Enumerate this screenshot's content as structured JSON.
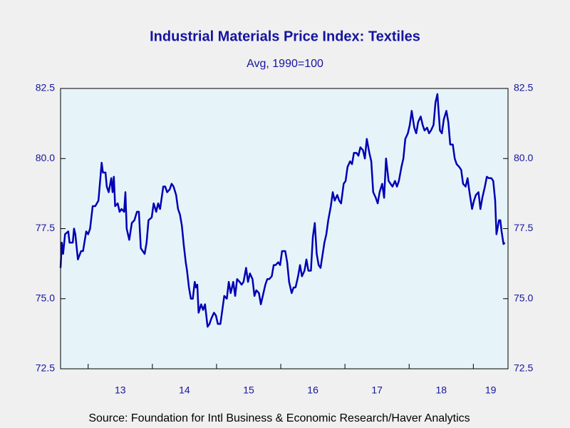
{
  "chart_data": {
    "type": "line",
    "title": "Industrial Materials Price Index: Textiles",
    "subtitle": "Avg, 1990=100",
    "source": "Source:  Foundation for Intl Business & Economic Research/Haver Analytics",
    "x": [
      12.57,
      12.59,
      12.61,
      12.64,
      12.69,
      12.71,
      12.76,
      12.78,
      12.8,
      12.84,
      12.89,
      12.92,
      12.97,
      13.0,
      13.03,
      13.07,
      13.11,
      13.16,
      13.19,
      13.21,
      13.23,
      13.27,
      13.29,
      13.32,
      13.36,
      13.38,
      13.4,
      13.42,
      13.46,
      13.49,
      13.52,
      13.56,
      13.58,
      13.6,
      13.64,
      13.68,
      13.72,
      13.76,
      13.79,
      13.82,
      13.88,
      13.91,
      13.94,
      13.99,
      14.02,
      14.06,
      14.09,
      14.12,
      14.17,
      14.2,
      14.23,
      14.27,
      14.3,
      14.33,
      14.37,
      14.4,
      14.43,
      14.46,
      14.49,
      14.52,
      14.54,
      14.57,
      14.6,
      14.63,
      14.66,
      14.68,
      14.7,
      14.72,
      14.76,
      14.79,
      14.82,
      14.86,
      14.89,
      14.92,
      14.96,
      14.99,
      15.02,
      15.06,
      15.09,
      15.12,
      15.16,
      15.19,
      15.22,
      15.26,
      15.29,
      15.32,
      15.36,
      15.39,
      15.42,
      15.46,
      15.49,
      15.52,
      15.56,
      15.59,
      15.62,
      15.66,
      15.69,
      15.72,
      15.76,
      15.79,
      15.82,
      15.86,
      15.89,
      15.92,
      15.96,
      15.99,
      16.02,
      16.07,
      16.1,
      16.13,
      16.17,
      16.2,
      16.23,
      16.27,
      16.3,
      16.33,
      16.37,
      16.4,
      16.43,
      16.47,
      16.5,
      16.53,
      16.56,
      16.59,
      16.62,
      16.64,
      16.68,
      16.71,
      16.74,
      16.78,
      16.81,
      16.84,
      16.88,
      16.91,
      16.94,
      16.98,
      17.01,
      17.04,
      17.08,
      17.11,
      17.14,
      17.18,
      17.21,
      17.24,
      17.28,
      17.31,
      17.34,
      17.38,
      17.41,
      17.44,
      17.48,
      17.51,
      17.54,
      17.58,
      17.61,
      17.64,
      17.68,
      17.71,
      17.74,
      17.78,
      17.81,
      17.84,
      17.88,
      17.91,
      17.94,
      17.98,
      18.01,
      18.04,
      18.08,
      18.11,
      18.14,
      18.18,
      18.21,
      18.24,
      18.28,
      18.31,
      18.34,
      18.38,
      18.41,
      18.44,
      18.48,
      18.51,
      18.54,
      18.58,
      18.61,
      18.64,
      18.68,
      18.71,
      18.74,
      18.78,
      18.81,
      18.84,
      18.88,
      18.91,
      18.94,
      18.98,
      19.01,
      19.04,
      19.08,
      19.11,
      19.14,
      19.18,
      19.21,
      19.24,
      19.28,
      19.31,
      19.34,
      19.36,
      19.4,
      19.42,
      19.44,
      19.47,
      19.49
    ],
    "series": [
      {
        "color": "#0000b4",
        "values": [
          76.1,
          77.0,
          76.6,
          77.3,
          77.4,
          77.0,
          77.0,
          77.5,
          77.3,
          76.4,
          76.7,
          76.7,
          77.4,
          77.3,
          77.5,
          78.3,
          78.3,
          78.5,
          79.3,
          79.85,
          79.5,
          79.5,
          79.0,
          78.8,
          79.3,
          78.8,
          79.35,
          78.3,
          78.4,
          78.1,
          78.2,
          78.1,
          78.8,
          77.5,
          77.1,
          77.7,
          77.8,
          78.1,
          78.1,
          76.8,
          76.6,
          77.0,
          77.8,
          77.9,
          78.4,
          78.1,
          78.4,
          78.2,
          79.0,
          79.0,
          78.8,
          78.9,
          79.1,
          79.0,
          78.7,
          78.2,
          78.0,
          77.6,
          76.9,
          76.3,
          76.0,
          75.4,
          75.0,
          75.0,
          75.6,
          75.4,
          75.5,
          74.5,
          74.8,
          74.6,
          74.8,
          74.0,
          74.1,
          74.3,
          74.5,
          74.4,
          74.1,
          74.1,
          74.6,
          75.1,
          75.0,
          75.6,
          75.2,
          75.6,
          75.1,
          75.7,
          75.6,
          75.5,
          75.6,
          76.1,
          75.6,
          75.9,
          75.7,
          75.1,
          75.3,
          75.2,
          74.8,
          75.1,
          75.5,
          75.7,
          75.7,
          75.8,
          76.2,
          76.2,
          76.3,
          76.2,
          76.7,
          76.7,
          76.3,
          75.6,
          75.2,
          75.4,
          75.4,
          75.8,
          76.2,
          75.8,
          76.0,
          76.4,
          76.0,
          76.0,
          77.2,
          77.7,
          76.6,
          76.2,
          76.1,
          76.4,
          77.0,
          77.3,
          77.8,
          78.3,
          78.8,
          78.5,
          78.7,
          78.5,
          78.4,
          79.1,
          79.2,
          79.7,
          79.9,
          79.8,
          80.2,
          80.2,
          80.1,
          80.4,
          80.3,
          80.0,
          80.7,
          80.2,
          79.9,
          78.8,
          78.6,
          78.4,
          78.8,
          79.1,
          78.6,
          80.0,
          79.2,
          79.1,
          79.0,
          79.2,
          79.0,
          79.2,
          79.7,
          80.0,
          80.7,
          80.9,
          81.2,
          81.7,
          81.1,
          80.9,
          81.3,
          81.5,
          81.2,
          81.0,
          81.1,
          80.9,
          81.0,
          81.2,
          82.0,
          82.3,
          81.0,
          80.9,
          81.4,
          81.7,
          81.3,
          80.5,
          80.5,
          80.0,
          79.8,
          79.7,
          79.6,
          79.1,
          79.0,
          79.3,
          78.8,
          78.2,
          78.5,
          78.7,
          78.8,
          78.2,
          78.6,
          79.0,
          79.35,
          79.3,
          79.3,
          79.2,
          78.5,
          77.3,
          77.8,
          77.8,
          77.4,
          76.95,
          77.0
        ]
      }
    ],
    "xlim": [
      12.57,
      19.54
    ],
    "xticks": [
      13,
      14,
      15,
      16,
      17,
      18,
      19
    ],
    "ylim": [
      72.5,
      82.5
    ],
    "yticks": [
      72.5,
      {
        "value": 75,
        "label": "75.0"
      },
      77.5,
      {
        "value": 80,
        "label": "80.0"
      },
      82.5
    ]
  }
}
